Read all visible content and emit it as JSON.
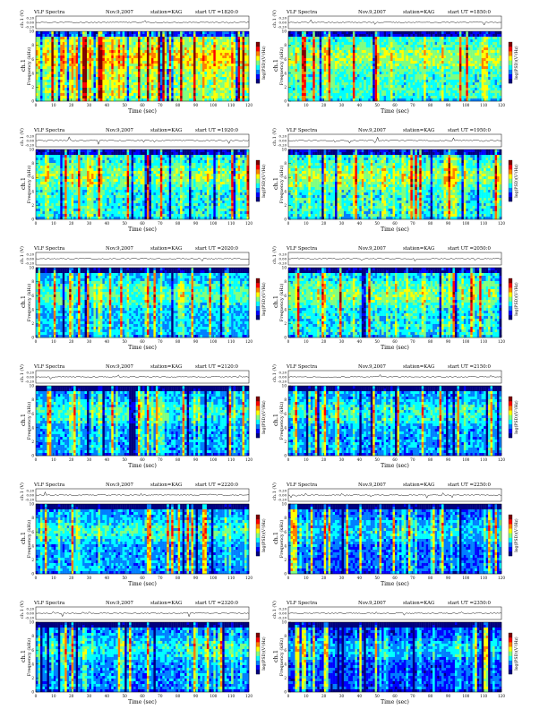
{
  "figure": {
    "header_title": "VLF Spectra",
    "date": "Nov.9,2007",
    "station_label": "station=KAG",
    "time_prefix": "start  UT =",
    "waveform_ylabel": "ch.1 (V)",
    "waveform_ticks": [
      "0.20",
      "0.00",
      "-0.20"
    ],
    "channel_label": "ch.1",
    "freq_ylabel": "Frequency (kHz)",
    "freq_ticks": [
      "0",
      "2",
      "4",
      "6",
      "8",
      "10"
    ],
    "time_ticks": [
      "0",
      "10",
      "20",
      "30",
      "40",
      "50",
      "60",
      "70",
      "80",
      "90",
      "100",
      "110",
      "120"
    ],
    "xlabel": "Time (sec)",
    "colorbar_label": "log(PSD)(V²/Hz)"
  },
  "colors": {
    "colormap": [
      "#00007f",
      "#0000ff",
      "#007fff",
      "#00ffff",
      "#7fff7f",
      "#ffff00",
      "#ff7f00",
      "#ff0000",
      "#7f0000"
    ]
  },
  "chart_data": [
    {
      "type": "heatmap",
      "start_ut": "1820:0",
      "xlim": [
        0,
        120
      ],
      "ylim": [
        0,
        10
      ],
      "intensity": 0.62
    },
    {
      "type": "heatmap",
      "start_ut": "1850:0",
      "xlim": [
        0,
        120
      ],
      "ylim": [
        0,
        10
      ],
      "intensity": 0.52
    },
    {
      "type": "heatmap",
      "start_ut": "1920:0",
      "xlim": [
        0,
        120
      ],
      "ylim": [
        0,
        10
      ],
      "intensity": 0.5
    },
    {
      "type": "heatmap",
      "start_ut": "1950:0",
      "xlim": [
        0,
        120
      ],
      "ylim": [
        0,
        10
      ],
      "intensity": 0.5
    },
    {
      "type": "heatmap",
      "start_ut": "2020:0",
      "xlim": [
        0,
        120
      ],
      "ylim": [
        0,
        10
      ],
      "intensity": 0.44
    },
    {
      "type": "heatmap",
      "start_ut": "2050:0",
      "xlim": [
        0,
        120
      ],
      "ylim": [
        0,
        10
      ],
      "intensity": 0.48
    },
    {
      "type": "heatmap",
      "start_ut": "2120:0",
      "xlim": [
        0,
        120
      ],
      "ylim": [
        0,
        10
      ],
      "intensity": 0.4
    },
    {
      "type": "heatmap",
      "start_ut": "2150:0",
      "xlim": [
        0,
        120
      ],
      "ylim": [
        0,
        10
      ],
      "intensity": 0.4
    },
    {
      "type": "heatmap",
      "start_ut": "2220:0",
      "xlim": [
        0,
        120
      ],
      "ylim": [
        0,
        10
      ],
      "intensity": 0.4
    },
    {
      "type": "heatmap",
      "start_ut": "2250:0",
      "xlim": [
        0,
        120
      ],
      "ylim": [
        0,
        10
      ],
      "intensity": 0.34
    },
    {
      "type": "heatmap",
      "start_ut": "2320:0",
      "xlim": [
        0,
        120
      ],
      "ylim": [
        0,
        10
      ],
      "intensity": 0.38
    },
    {
      "type": "heatmap",
      "start_ut": "2350:0",
      "xlim": [
        0,
        120
      ],
      "ylim": [
        0,
        10
      ],
      "intensity": 0.3
    }
  ]
}
